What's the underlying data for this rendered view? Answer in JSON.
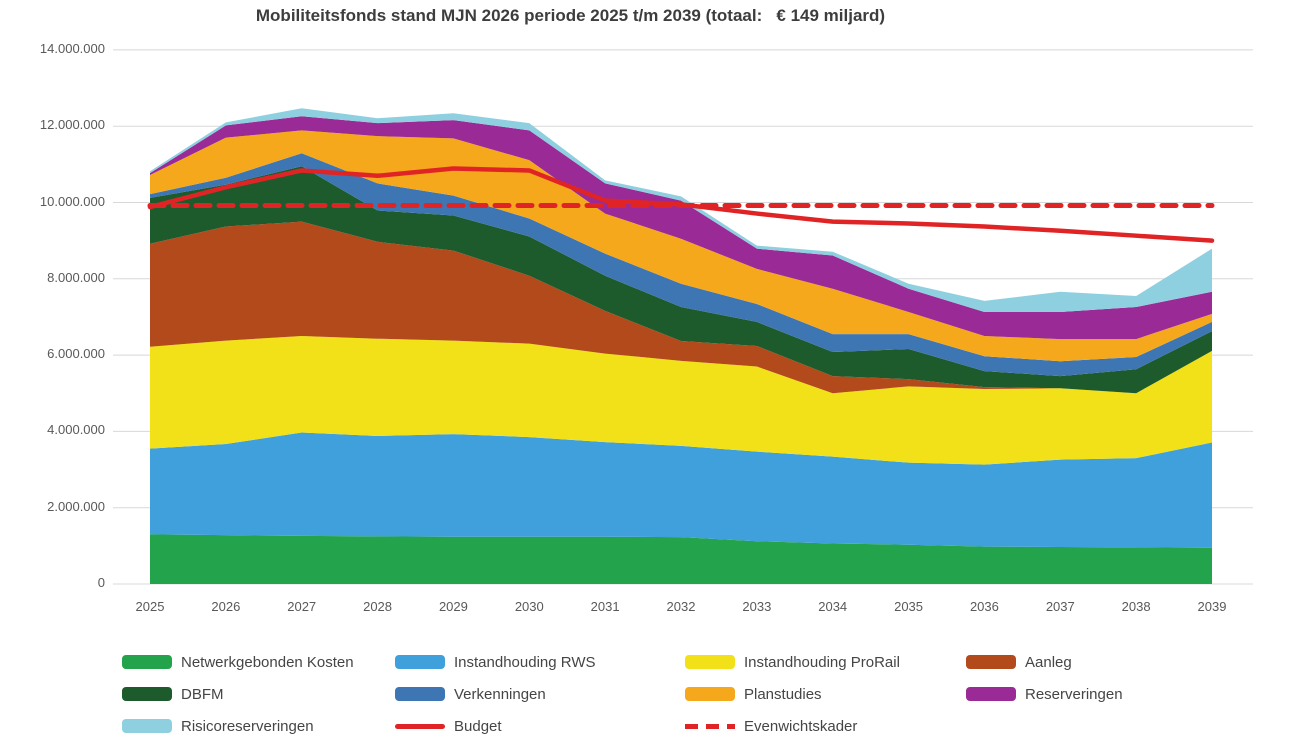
{
  "title": "Mobiliteitsfonds stand MJN 2026 periode 2025 t/m 2039 (totaal:   € 149 miljard)",
  "chart_data": {
    "type": "area",
    "stacked": true,
    "title": "Mobiliteitsfonds stand MJN 2026 periode 2025 t/m 2039 (totaal:   € 149 miljard)",
    "grid": true,
    "legend_position": "bottom",
    "x": [
      2025,
      2026,
      2027,
      2028,
      2029,
      2030,
      2031,
      2032,
      2033,
      2034,
      2035,
      2036,
      2037,
      2038,
      2039
    ],
    "x_labels": [
      "2025",
      "2026",
      "2027",
      "2028",
      "2029",
      "2030",
      "2031",
      "2032",
      "2033",
      "2034",
      "2035",
      "2036",
      "2037",
      "2038",
      "2039"
    ],
    "y_axis": {
      "min": 0,
      "max": 14000000,
      "tick_step": 2000000,
      "tick_labels": [
        "0",
        "2.000.000",
        "4.000.000",
        "6.000.000",
        "8.000.000",
        "10.000.000",
        "12.000.000",
        "14.000.000"
      ]
    },
    "series": [
      {
        "id": "netwerkgebonden-kosten",
        "name": "Netwerkgebonden Kosten",
        "color": "#22a34c",
        "values": [
          1300000,
          1280000,
          1260000,
          1250000,
          1240000,
          1240000,
          1240000,
          1230000,
          1120000,
          1060000,
          1030000,
          980000,
          970000,
          960000,
          950000
        ]
      },
      {
        "id": "instandhouding-rws",
        "name": "Instandhouding RWS",
        "color": "#3fa0dc",
        "values": [
          2250000,
          2390000,
          2710000,
          2630000,
          2690000,
          2610000,
          2480000,
          2390000,
          2350000,
          2280000,
          2150000,
          2150000,
          2290000,
          2340000,
          2760000
        ]
      },
      {
        "id": "instandhouding-prorail",
        "name": "Instandhouding ProRail",
        "color": "#f2e118",
        "values": [
          2670000,
          2710000,
          2530000,
          2550000,
          2450000,
          2450000,
          2320000,
          2230000,
          2230000,
          1660000,
          2000000,
          1980000,
          1870000,
          1700000,
          2400000
        ]
      },
      {
        "id": "aanleg",
        "name": "Aanleg",
        "color": "#b34a1c",
        "values": [
          2700000,
          2990000,
          3000000,
          2540000,
          2360000,
          1780000,
          1120000,
          520000,
          540000,
          450000,
          190000,
          50000,
          0,
          0,
          0
        ]
      },
      {
        "id": "dbfm",
        "name": "DBFM",
        "color": "#1d5b2d",
        "values": [
          1200000,
          1100000,
          1450000,
          820000,
          920000,
          1030000,
          920000,
          890000,
          630000,
          630000,
          790000,
          420000,
          320000,
          630000,
          520000
        ]
      },
      {
        "id": "verkenningen",
        "name": "Verkenningen",
        "color": "#3e76b4",
        "values": [
          100000,
          180000,
          340000,
          710000,
          520000,
          470000,
          580000,
          610000,
          470000,
          470000,
          390000,
          390000,
          390000,
          320000,
          240000
        ]
      },
      {
        "id": "planstudies",
        "name": "Planstudies",
        "color": "#f6a81c",
        "values": [
          500000,
          1050000,
          600000,
          1240000,
          1500000,
          1530000,
          1050000,
          1180000,
          920000,
          1190000,
          580000,
          530000,
          580000,
          470000,
          210000
        ]
      },
      {
        "id": "reserveringen",
        "name": "Reserveringen",
        "color": "#9a2a96",
        "values": [
          50000,
          320000,
          370000,
          340000,
          480000,
          780000,
          790000,
          1000000,
          530000,
          870000,
          610000,
          630000,
          710000,
          840000,
          580000
        ]
      },
      {
        "id": "risicoreserveringen",
        "name": "Risicoreserveringen",
        "color": "#8ed0df",
        "values": [
          50000,
          80000,
          210000,
          130000,
          180000,
          190000,
          80000,
          110000,
          80000,
          100000,
          130000,
          290000,
          530000,
          290000,
          1130000
        ]
      }
    ],
    "lines": [
      {
        "id": "budget",
        "name": "Budget",
        "color": "#e02426",
        "style": "solid",
        "values": [
          9880000,
          10400000,
          10840000,
          10700000,
          10890000,
          10840000,
          10050000,
          9950000,
          9710000,
          9500000,
          9450000,
          9370000,
          9260000,
          9130000,
          9000000
        ]
      },
      {
        "id": "evenwichtskader",
        "name": "Evenwichtskader",
        "color": "#e02426",
        "style": "dashed",
        "values": [
          9920000,
          9920000,
          9920000,
          9920000,
          9920000,
          9920000,
          9920000,
          9920000,
          9920000,
          9920000,
          9920000,
          9920000,
          9920000,
          9920000,
          9920000
        ]
      }
    ]
  },
  "legend": {
    "items": [
      {
        "id": "netwerkgebonden-kosten",
        "label": "Netwerkgebonden Kosten",
        "color": "#22a34c",
        "type": "area"
      },
      {
        "id": "instandhouding-rws",
        "label": "Instandhouding RWS",
        "color": "#3fa0dc",
        "type": "area"
      },
      {
        "id": "instandhouding-prorail",
        "label": "Instandhouding ProRail",
        "color": "#f2e118",
        "type": "area"
      },
      {
        "id": "aanleg",
        "label": "Aanleg",
        "color": "#b34a1c",
        "type": "area"
      },
      {
        "id": "dbfm",
        "label": "DBFM",
        "color": "#1d5b2d",
        "type": "area"
      },
      {
        "id": "verkenningen",
        "label": "Verkenningen",
        "color": "#3e76b4",
        "type": "area"
      },
      {
        "id": "planstudies",
        "label": "Planstudies",
        "color": "#f6a81c",
        "type": "area"
      },
      {
        "id": "reserveringen",
        "label": "Reserveringen",
        "color": "#9a2a96",
        "type": "area"
      },
      {
        "id": "risicoreserveringen",
        "label": "Risicoreserveringen",
        "color": "#8ed0df",
        "type": "area"
      },
      {
        "id": "budget",
        "label": "Budget",
        "color": "#e02426",
        "type": "line"
      },
      {
        "id": "evenwichtskader",
        "label": "Evenwichtskader",
        "color": "#e02426",
        "type": "dash"
      }
    ]
  }
}
